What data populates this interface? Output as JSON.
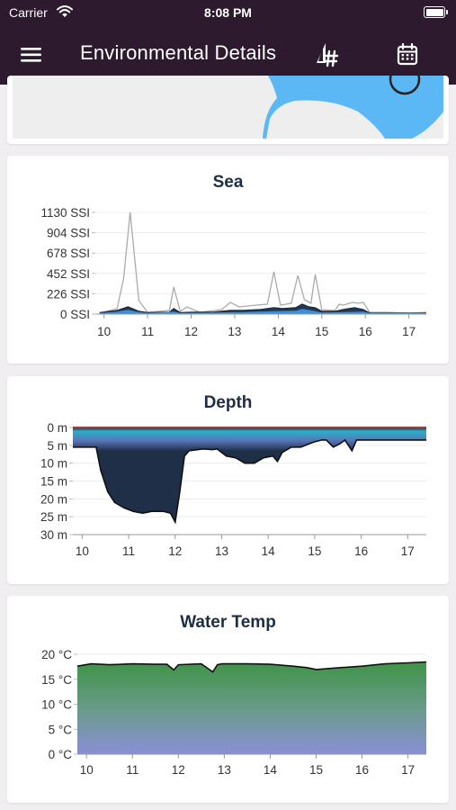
{
  "status_bar": {
    "carrier": "Carrier",
    "time": "8:08 PM"
  },
  "navbar": {
    "title": "Environmental Details",
    "menu_icon": "hamburger-menu-icon",
    "hash_icon": "sailboat-hash-icon",
    "calendar_icon": "calendar-icon",
    "bar_color": "#2d1a2e"
  },
  "map": {
    "water_color": "#5bb8f5",
    "land_color": "#eeeeee"
  },
  "chart_data": [
    {
      "type": "line",
      "title": "Sea",
      "x_ticks": [
        "10",
        "11",
        "12",
        "13",
        "14",
        "15",
        "16",
        "17"
      ],
      "y_ticks": [
        "1130 SSI",
        "904 SSI",
        "678 SSI",
        "452 SSI",
        "226 SSI",
        "0 SSI"
      ],
      "ylim": [
        0,
        1130
      ],
      "xlim": [
        9.8,
        17.4
      ],
      "series": [
        {
          "color": "#aaaaaa",
          "x": [
            9.9,
            10.3,
            10.45,
            10.6,
            10.8,
            11.0,
            11.5,
            11.6,
            11.75,
            11.9,
            12.2,
            12.7,
            12.9,
            13.1,
            13.5,
            13.75,
            13.9,
            14.05,
            14.3,
            14.45,
            14.6,
            14.75,
            14.85,
            15.0,
            15.3,
            15.4,
            15.5,
            15.7,
            15.85,
            15.95,
            16.1,
            16.5,
            17.0,
            17.4
          ],
          "values": [
            10,
            60,
            400,
            1130,
            150,
            20,
            40,
            300,
            30,
            80,
            20,
            50,
            130,
            80,
            100,
            110,
            470,
            100,
            120,
            430,
            160,
            120,
            440,
            50,
            40,
            110,
            100,
            130,
            120,
            130,
            20,
            20,
            10,
            20
          ]
        },
        {
          "color": "#1a2d44",
          "x": [
            9.9,
            10.3,
            10.55,
            10.8,
            11.0,
            11.5,
            11.6,
            11.75,
            12.0,
            12.5,
            12.9,
            13.2,
            13.6,
            13.9,
            14.1,
            14.4,
            14.55,
            14.7,
            14.85,
            15.0,
            15.3,
            15.5,
            15.75,
            15.95,
            16.1,
            17.4
          ],
          "values": [
            15,
            40,
            80,
            30,
            15,
            20,
            60,
            15,
            20,
            20,
            40,
            40,
            50,
            70,
            60,
            70,
            110,
            80,
            70,
            30,
            30,
            50,
            70,
            50,
            10,
            10
          ]
        },
        {
          "color": "#3a8fe0",
          "x": [
            9.9,
            10.3,
            10.55,
            10.8,
            11.0,
            11.6,
            11.75,
            12.5,
            13.2,
            13.9,
            14.4,
            14.55,
            14.85,
            15.0,
            15.5,
            15.95,
            16.1,
            17.4
          ],
          "values": [
            5,
            20,
            40,
            15,
            5,
            20,
            5,
            10,
            15,
            25,
            30,
            50,
            25,
            10,
            15,
            20,
            5,
            5
          ]
        }
      ]
    },
    {
      "type": "area",
      "title": "Depth",
      "x_ticks": [
        "10",
        "11",
        "12",
        "13",
        "14",
        "15",
        "16",
        "17"
      ],
      "y_ticks": [
        "0 m",
        "5 m",
        "10 m",
        "15 m",
        "20 m",
        "25 m",
        "30 m"
      ],
      "ylim": [
        0,
        30
      ],
      "xlim": [
        9.8,
        17.4
      ],
      "inverted": true,
      "series": [
        {
          "color": "#1a2d44",
          "x": [
            9.8,
            10.3,
            10.4,
            10.55,
            10.7,
            10.9,
            11.1,
            11.3,
            11.5,
            11.75,
            11.9,
            12.0,
            12.1,
            12.2,
            12.3,
            12.6,
            12.8,
            12.9,
            13.1,
            13.3,
            13.5,
            13.7,
            13.9,
            14.1,
            14.2,
            14.3,
            14.5,
            14.7,
            14.9,
            15.0,
            15.15,
            15.25,
            15.4,
            15.55,
            15.65,
            15.8,
            15.9,
            16.5,
            17.0,
            17.4
          ],
          "values": [
            5.5,
            5.5,
            12,
            18,
            21,
            22.5,
            23.5,
            24,
            23.5,
            23.5,
            24,
            26.5,
            18,
            8,
            6.5,
            6,
            6.2,
            6,
            8,
            8.5,
            10,
            10,
            8.5,
            8,
            9.5,
            7,
            5.5,
            5.5,
            4.5,
            4,
            3.5,
            3.5,
            5.5,
            4.5,
            3.5,
            6.5,
            3.5,
            3.5,
            3.5,
            3.5
          ]
        }
      ]
    },
    {
      "type": "area",
      "title": "Water Temp",
      "x_ticks": [
        "10",
        "11",
        "12",
        "13",
        "14",
        "15",
        "16",
        "17"
      ],
      "y_ticks": [
        "20 °C",
        "15 °C",
        "10 °C",
        "5 °C",
        "0 °C"
      ],
      "ylim": [
        0,
        21
      ],
      "xlim": [
        9.8,
        17.4
      ],
      "series": [
        {
          "color": "#1a2d44",
          "x": [
            9.8,
            10.1,
            10.5,
            11.0,
            11.5,
            11.75,
            11.9,
            12.0,
            12.5,
            12.75,
            12.85,
            12.95,
            13.5,
            14.0,
            14.5,
            14.8,
            15.0,
            15.4,
            16.0,
            16.5,
            17.0,
            17.4
          ],
          "values": [
            18.5,
            19,
            18.8,
            19,
            18.9,
            18.9,
            17.7,
            18.8,
            19,
            17.3,
            18.8,
            19,
            19,
            18.9,
            18.5,
            18.2,
            17.8,
            18.1,
            18.5,
            19,
            19.2,
            19.4
          ]
        }
      ]
    }
  ]
}
